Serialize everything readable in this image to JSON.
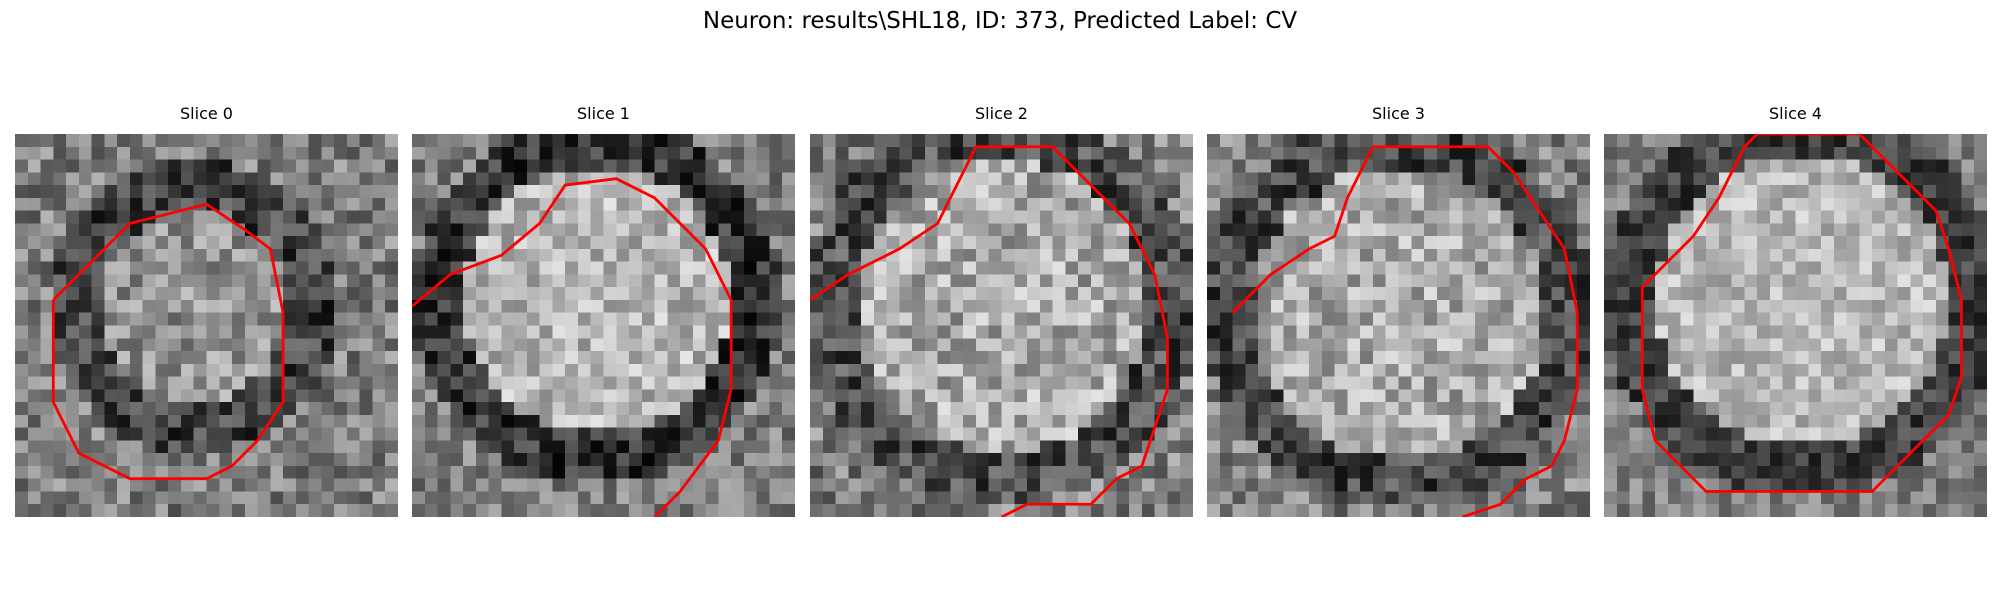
{
  "figure": {
    "title": "Neuron: results\\SHL18, ID: 373, Predicted Label: CV",
    "panels": [
      {
        "title": "Slice 0",
        "seed": 11,
        "bright": 0.35,
        "ring": 0.55,
        "noise": 0.42
      },
      {
        "title": "Slice 1",
        "seed": 23,
        "bright": 0.75,
        "ring": 0.65,
        "noise": 0.38
      },
      {
        "title": "Slice 2",
        "seed": 37,
        "bright": 0.62,
        "ring": 0.45,
        "noise": 0.45
      },
      {
        "title": "Slice 3",
        "seed": 41,
        "bright": 0.62,
        "ring": 0.5,
        "noise": 0.42
      },
      {
        "title": "Slice 4",
        "seed": 59,
        "bright": 0.78,
        "ring": 0.55,
        "noise": 0.33
      }
    ],
    "colormap": "gray",
    "contour_color": "#ff0000"
  }
}
